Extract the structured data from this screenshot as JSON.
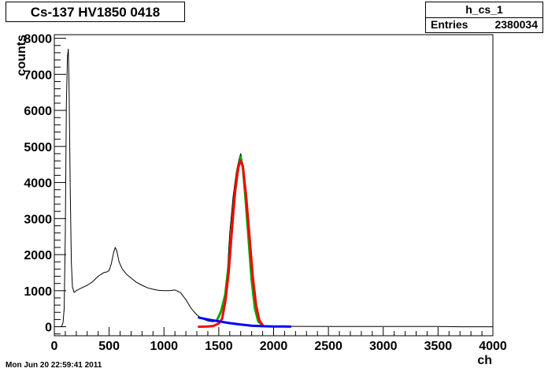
{
  "title": "Cs-137 HV1850 0418",
  "stats": {
    "name": "h_cs_1",
    "entries_label": "Entries",
    "entries_value": "2380034"
  },
  "timestamp": "Mon Jun 20 22:59:41 2011",
  "chart_data": {
    "type": "line",
    "xlabel": "ch",
    "ylabel": "counts",
    "xlim": [
      0,
      4000
    ],
    "ylim": [
      -250,
      8100
    ],
    "x_ticks": [
      0,
      500,
      1000,
      1500,
      2000,
      2500,
      3000,
      3500,
      4000
    ],
    "y_ticks": [
      0,
      1000,
      2000,
      3000,
      4000,
      5000,
      6000,
      7000,
      8000
    ],
    "grid": false,
    "series": [
      {
        "color": "#000000",
        "points": [
          [
            60,
            0
          ],
          [
            70,
            30
          ],
          [
            80,
            120
          ],
          [
            90,
            500
          ],
          [
            100,
            2500
          ],
          [
            110,
            6200
          ],
          [
            120,
            7500
          ],
          [
            128,
            7700
          ],
          [
            135,
            6500
          ],
          [
            145,
            3800
          ],
          [
            155,
            1800
          ],
          [
            165,
            1100
          ],
          [
            180,
            950
          ],
          [
            200,
            1000
          ],
          [
            250,
            1080
          ],
          [
            300,
            1150
          ],
          [
            350,
            1250
          ],
          [
            400,
            1400
          ],
          [
            450,
            1500
          ],
          [
            480,
            1520
          ],
          [
            500,
            1560
          ],
          [
            520,
            1750
          ],
          [
            540,
            2050
          ],
          [
            555,
            2200
          ],
          [
            570,
            2100
          ],
          [
            590,
            1800
          ],
          [
            620,
            1600
          ],
          [
            660,
            1450
          ],
          [
            700,
            1350
          ],
          [
            750,
            1230
          ],
          [
            800,
            1150
          ],
          [
            850,
            1080
          ],
          [
            900,
            1040
          ],
          [
            950,
            1010
          ],
          [
            1000,
            1000
          ],
          [
            1050,
            1000
          ],
          [
            1100,
            1020
          ],
          [
            1150,
            950
          ],
          [
            1200,
            750
          ],
          [
            1250,
            500
          ],
          [
            1300,
            330
          ],
          [
            1350,
            220
          ],
          [
            1400,
            160
          ],
          [
            1450,
            140
          ],
          [
            1480,
            160
          ],
          [
            1500,
            250
          ],
          [
            1520,
            400
          ],
          [
            1550,
            800
          ],
          [
            1580,
            1600
          ],
          [
            1600,
            2600
          ],
          [
            1630,
            3600
          ],
          [
            1660,
            4300
          ],
          [
            1685,
            4650
          ],
          [
            1700,
            4800
          ],
          [
            1720,
            4500
          ],
          [
            1740,
            3800
          ],
          [
            1760,
            3000
          ],
          [
            1780,
            2100
          ],
          [
            1800,
            1300
          ],
          [
            1820,
            700
          ],
          [
            1850,
            250
          ],
          [
            1880,
            80
          ],
          [
            1920,
            30
          ],
          [
            2000,
            15
          ],
          [
            2200,
            10
          ],
          [
            2500,
            8
          ],
          [
            3000,
            6
          ],
          [
            3500,
            5
          ],
          [
            3650,
            2
          ],
          [
            3700,
            0
          ],
          [
            4000,
            0
          ]
        ]
      },
      {
        "color": "#00aa00",
        "points": [
          [
            1480,
            160
          ],
          [
            1520,
            420
          ],
          [
            1560,
            900
          ],
          [
            1600,
            2000
          ],
          [
            1640,
            3500
          ],
          [
            1670,
            4300
          ],
          [
            1700,
            4700
          ],
          [
            1720,
            4400
          ],
          [
            1740,
            3700
          ],
          [
            1770,
            2500
          ],
          [
            1800,
            1300
          ],
          [
            1830,
            500
          ],
          [
            1860,
            150
          ],
          [
            1900,
            40
          ]
        ]
      },
      {
        "color": "#ff0000",
        "points": [
          [
            1310,
            0
          ],
          [
            1400,
            5
          ],
          [
            1450,
            20
          ],
          [
            1500,
            90
          ],
          [
            1530,
            220
          ],
          [
            1560,
            700
          ],
          [
            1590,
            1500
          ],
          [
            1620,
            2700
          ],
          [
            1650,
            3800
          ],
          [
            1680,
            4450
          ],
          [
            1700,
            4600
          ],
          [
            1720,
            4450
          ],
          [
            1750,
            3600
          ],
          [
            1780,
            2500
          ],
          [
            1810,
            1400
          ],
          [
            1840,
            600
          ],
          [
            1870,
            180
          ],
          [
            1900,
            40
          ]
        ]
      },
      {
        "color": "#0000ff",
        "points": [
          [
            1310,
            260
          ],
          [
            1400,
            200
          ],
          [
            1500,
            150
          ],
          [
            1600,
            100
          ],
          [
            1700,
            60
          ],
          [
            1800,
            30
          ],
          [
            1900,
            15
          ],
          [
            2000,
            8
          ],
          [
            2100,
            5
          ],
          [
            2160,
            4
          ]
        ]
      }
    ]
  }
}
